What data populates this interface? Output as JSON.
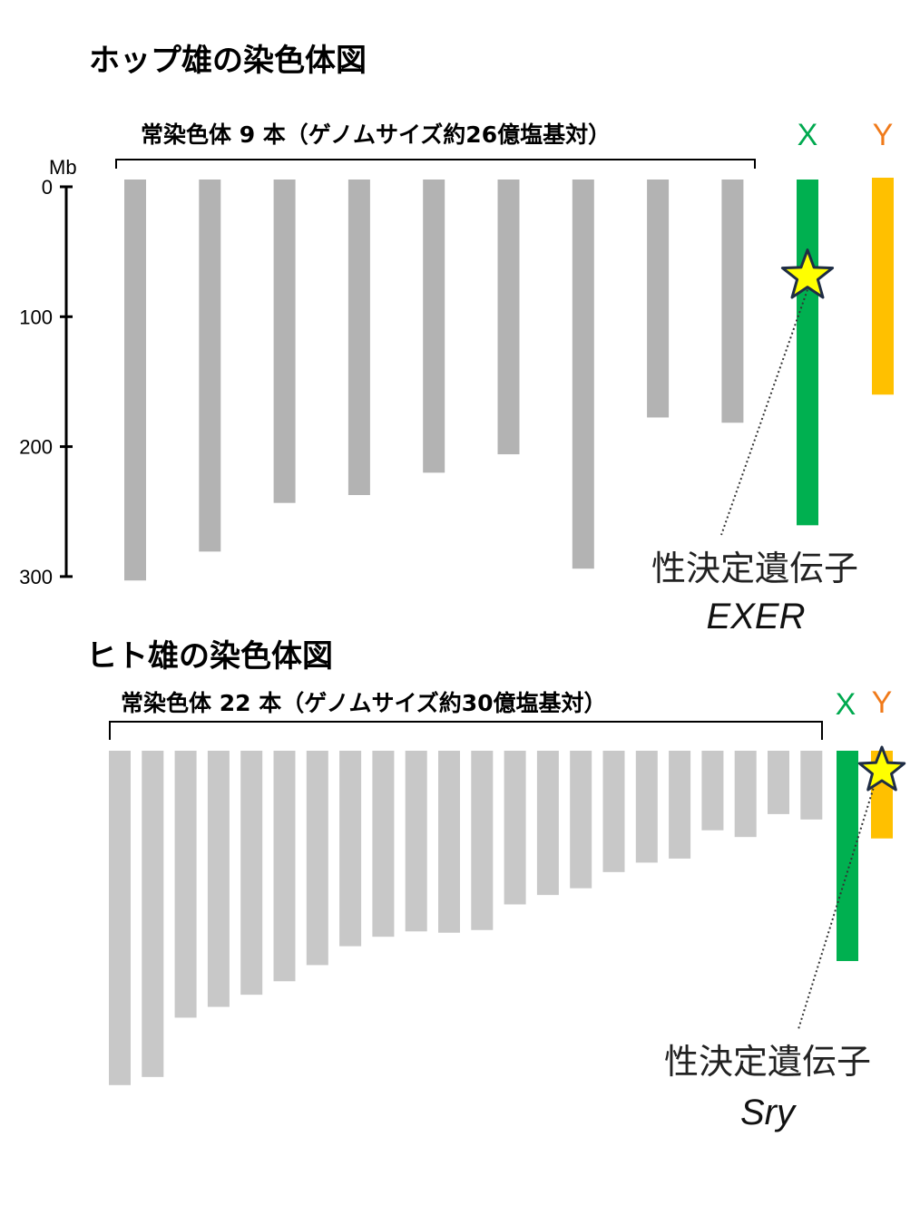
{
  "hop": {
    "title": "ホップ雄の染色体図",
    "autosome_label": "常染色体 9 本（ゲノムサイズ約26億塩基対）",
    "x_label": "X",
    "y_label": "Y",
    "gene_label": "性決定遺伝子",
    "gene_name": "EXER"
  },
  "human": {
    "title": "ヒト雄の染色体図",
    "autosome_label": "常染色体 22 本（ゲノムサイズ約30億塩基対）",
    "x_label": "X",
    "y_label": "Y",
    "gene_label": "性決定遺伝子",
    "gene_name": "Sry"
  },
  "axis": {
    "unit": "Mb",
    "ticks": [
      "0",
      "100",
      "200",
      "300"
    ]
  },
  "chart_data": [
    {
      "type": "bar",
      "name": "hop",
      "unit": "Mb",
      "ylim": [
        0,
        300
      ],
      "autosomes": [
        305,
        283,
        246,
        240,
        223,
        209,
        296,
        181,
        185
      ],
      "x_chromosome": 263,
      "y_chromosome": 165,
      "gene_position_mb": 72,
      "colors": {
        "autosome": "#b3b3b3",
        "x": "#00b050",
        "y": "#ffc000",
        "star": "#ffff00"
      }
    },
    {
      "type": "bar",
      "name": "human",
      "autosomes": [
        248,
        242,
        198,
        190,
        181,
        171,
        159,
        145,
        138,
        134,
        135,
        133,
        114,
        107,
        102,
        90,
        83,
        80,
        59,
        64,
        47,
        51
      ],
      "x_chromosome": 156,
      "y_chromosome": 57,
      "gene_position_mb": 3,
      "colors": {
        "autosome": "#c8c8c8",
        "x": "#00b050",
        "y": "#ffc000",
        "star": "#ffff00"
      }
    }
  ]
}
